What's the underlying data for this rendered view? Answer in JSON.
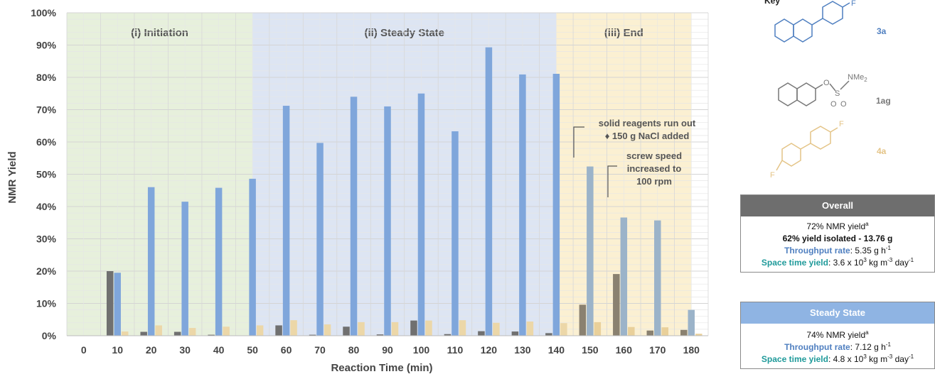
{
  "chart_data": {
    "type": "bar",
    "xlabel": "Reaction Time (min)",
    "ylabel": "NMR Yield",
    "ylim": [
      0,
      100
    ],
    "yticks": [
      "0%",
      "10%",
      "20%",
      "30%",
      "40%",
      "50%",
      "60%",
      "70%",
      "80%",
      "90%",
      "100%"
    ],
    "categories": [
      "0",
      "10",
      "20",
      "30",
      "40",
      "50",
      "60",
      "70",
      "80",
      "90",
      "100",
      "110",
      "120",
      "130",
      "140",
      "150",
      "160",
      "170",
      "180"
    ],
    "series": [
      {
        "name": "1ag",
        "color": "#707070",
        "values": [
          0,
          20,
          1.2,
          1.2,
          0.3,
          0,
          3.2,
          0.3,
          2.8,
          0.4,
          4.7,
          0.5,
          1.4,
          1.3,
          0.8,
          9.6,
          19.1,
          1.6,
          1.8
        ]
      },
      {
        "name": "3a",
        "color": "#7fa6db",
        "values": [
          0,
          19.5,
          46,
          41.5,
          45.8,
          48.6,
          71.2,
          59.7,
          74,
          71,
          75,
          63.3,
          89.3,
          80.9,
          81.1,
          52.4,
          36.6,
          35.7,
          8
        ]
      },
      {
        "name": "4a",
        "color": "#ecd7a8",
        "values": [
          0,
          1.3,
          3.2,
          2.4,
          2.8,
          3.2,
          4.8,
          3.5,
          4.2,
          4.2,
          4.7,
          4.8,
          4,
          4.4,
          3.9,
          4.2,
          2.7,
          2.6,
          0.6
        ]
      }
    ],
    "phases": [
      {
        "label": "(i) Initiation",
        "from": 0,
        "to": 5.5,
        "color": "#e7f0dc"
      },
      {
        "label": "(ii) Steady State",
        "from": 5.5,
        "to": 14.5,
        "color": "#dde5f3"
      },
      {
        "label": "(iii) End",
        "from": 14.5,
        "to": 18.5,
        "color": "#fbf0d2"
      }
    ],
    "annotations": [
      {
        "lines": [
          "solid reagents run out",
          "♦ 150 g NaCl added"
        ]
      },
      {
        "lines": [
          "screw speed",
          "increased to",
          "100 rpm"
        ]
      }
    ],
    "grid": true
  },
  "key": {
    "title": "Key",
    "compounds": [
      {
        "label": "3a",
        "color": "#4f7fc0"
      },
      {
        "label": "1ag",
        "color": "#777777"
      },
      {
        "label": "4a",
        "color": "#e4c487"
      }
    ],
    "atoms": {
      "F": "F",
      "O": "O",
      "S": "S",
      "NMe": "NMe",
      "NMe_sub": "2"
    }
  },
  "overall": {
    "title": "Overall",
    "head_color": "#6e6e6e",
    "nmr": "72% NMR yield",
    "nmr_sup": "a",
    "isolated": "62% yield isolated - 13.76 g",
    "throughput_label": "Throughput rate",
    "throughput_value": ": 5.35 g h",
    "throughput_sup": "-1",
    "sty_label": "Space time yield",
    "sty_value": ": 3.6 x 10",
    "sty_exp": "3",
    "sty_unit": " kg m",
    "sty_unit_exp": "-3",
    "sty_day": " day",
    "sty_day_exp": "-1"
  },
  "steady": {
    "title": "Steady State",
    "head_color": "#8fb4e3",
    "nmr": "74% NMR yield",
    "nmr_sup": "a",
    "throughput_label": "Throughput rate",
    "throughput_value": ": 7.12 g h",
    "throughput_sup": "-1",
    "sty_label": "Space time yield",
    "sty_value": ": 4.8 x 10",
    "sty_exp": "3",
    "sty_unit": " kg m",
    "sty_unit_exp": "-3",
    "sty_day": " day",
    "sty_day_exp": "-1"
  },
  "colors": {
    "blue_text": "#4f7fc0",
    "teal_text": "#1f9a9a"
  }
}
